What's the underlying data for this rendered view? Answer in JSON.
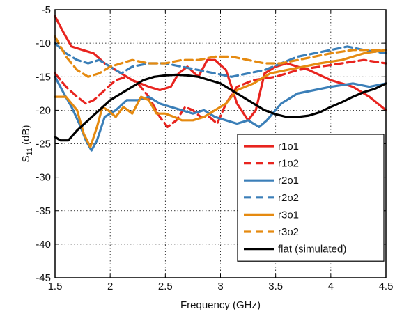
{
  "chart_data": {
    "type": "line",
    "title": "",
    "xlabel": "Frequency (GHz)",
    "ylabel_main": "S",
    "ylabel_sub": "11",
    "ylabel_unit": " (dB)",
    "xlim": [
      1.5,
      4.5
    ],
    "ylim": [
      -45,
      -5
    ],
    "xticks": [
      1.5,
      2,
      2.5,
      3,
      3.5,
      4,
      4.5
    ],
    "xtick_labels": [
      "1.5",
      "2",
      "2.5",
      "3",
      "3.5",
      "4",
      "4.5"
    ],
    "yticks": [
      -45,
      -40,
      -35,
      -30,
      -25,
      -20,
      -15,
      -10,
      -5
    ],
    "ytick_labels": [
      "-45",
      "-40",
      "-35",
      "-30",
      "-25",
      "-20",
      "-15",
      "-10",
      "-5"
    ],
    "grid": true,
    "legend_position": "lower-right",
    "series": [
      {
        "name": "r1o1",
        "color": "#e8241f",
        "dash": "solid",
        "points": [
          [
            1.5,
            -6
          ],
          [
            1.58,
            -8.5
          ],
          [
            1.65,
            -10.5
          ],
          [
            1.75,
            -11
          ],
          [
            1.85,
            -11.5
          ],
          [
            1.95,
            -13
          ],
          [
            2.05,
            -14
          ],
          [
            2.2,
            -15.5
          ],
          [
            2.35,
            -16.5
          ],
          [
            2.45,
            -17
          ],
          [
            2.55,
            -16.5
          ],
          [
            2.62,
            -14.5
          ],
          [
            2.7,
            -13.5
          ],
          [
            2.8,
            -15
          ],
          [
            2.88,
            -12.5
          ],
          [
            2.95,
            -12.5
          ],
          [
            3.05,
            -14
          ],
          [
            3.15,
            -19
          ],
          [
            3.25,
            -21.5
          ],
          [
            3.32,
            -20
          ],
          [
            3.4,
            -14.5
          ],
          [
            3.5,
            -13.5
          ],
          [
            3.6,
            -13
          ],
          [
            3.8,
            -14
          ],
          [
            4.0,
            -15.5
          ],
          [
            4.2,
            -16.5
          ],
          [
            4.35,
            -18
          ],
          [
            4.5,
            -20
          ]
        ]
      },
      {
        "name": "r1o2",
        "color": "#e8241f",
        "dash": "dashed",
        "points": [
          [
            1.5,
            -14.5
          ],
          [
            1.6,
            -16.5
          ],
          [
            1.7,
            -18
          ],
          [
            1.78,
            -19
          ],
          [
            1.85,
            -18.5
          ],
          [
            1.95,
            -17
          ],
          [
            2.05,
            -15.5
          ],
          [
            2.15,
            -15
          ],
          [
            2.25,
            -16
          ],
          [
            2.35,
            -18
          ],
          [
            2.45,
            -21
          ],
          [
            2.52,
            -22.5
          ],
          [
            2.6,
            -21.5
          ],
          [
            2.68,
            -19.5
          ],
          [
            2.75,
            -20
          ],
          [
            2.82,
            -21
          ],
          [
            2.9,
            -21
          ],
          [
            2.97,
            -22
          ],
          [
            3.05,
            -19
          ],
          [
            3.15,
            -16.5
          ],
          [
            3.3,
            -15.5
          ],
          [
            3.5,
            -15
          ],
          [
            3.7,
            -14
          ],
          [
            3.9,
            -13.5
          ],
          [
            4.1,
            -13
          ],
          [
            4.3,
            -12.5
          ],
          [
            4.5,
            -13
          ]
        ]
      },
      {
        "name": "r2o1",
        "color": "#3b7fb8",
        "dash": "solid",
        "points": [
          [
            1.5,
            -15
          ],
          [
            1.58,
            -17.5
          ],
          [
            1.65,
            -19.5
          ],
          [
            1.72,
            -22
          ],
          [
            1.78,
            -24.5
          ],
          [
            1.83,
            -26
          ],
          [
            1.88,
            -24.5
          ],
          [
            1.95,
            -21
          ],
          [
            2.05,
            -20
          ],
          [
            2.15,
            -18.5
          ],
          [
            2.25,
            -18.5
          ],
          [
            2.35,
            -18
          ],
          [
            2.45,
            -19
          ],
          [
            2.55,
            -19.5
          ],
          [
            2.65,
            -20
          ],
          [
            2.75,
            -20.5
          ],
          [
            2.85,
            -20
          ],
          [
            2.95,
            -21
          ],
          [
            3.05,
            -21.5
          ],
          [
            3.15,
            -22
          ],
          [
            3.25,
            -21.5
          ],
          [
            3.35,
            -22.5
          ],
          [
            3.42,
            -21.5
          ],
          [
            3.55,
            -19
          ],
          [
            3.7,
            -17.5
          ],
          [
            3.85,
            -17
          ],
          [
            4.0,
            -16.5
          ],
          [
            4.2,
            -16
          ],
          [
            4.35,
            -16.5
          ],
          [
            4.5,
            -16
          ]
        ]
      },
      {
        "name": "r2o2",
        "color": "#3b7fb8",
        "dash": "dashed",
        "points": [
          [
            1.5,
            -10
          ],
          [
            1.6,
            -11.5
          ],
          [
            1.7,
            -12.5
          ],
          [
            1.8,
            -13
          ],
          [
            1.9,
            -12.5
          ],
          [
            2.0,
            -13.5
          ],
          [
            2.1,
            -14.5
          ],
          [
            2.2,
            -13.5
          ],
          [
            2.35,
            -13
          ],
          [
            2.5,
            -13
          ],
          [
            2.65,
            -13.5
          ],
          [
            2.8,
            -14
          ],
          [
            2.95,
            -14.5
          ],
          [
            3.1,
            -15
          ],
          [
            3.25,
            -14.5
          ],
          [
            3.4,
            -14
          ],
          [
            3.55,
            -13
          ],
          [
            3.7,
            -12
          ],
          [
            3.85,
            -11.5
          ],
          [
            4.0,
            -11
          ],
          [
            4.15,
            -10.5
          ],
          [
            4.3,
            -11
          ],
          [
            4.5,
            -11.5
          ]
        ]
      },
      {
        "name": "r3o1",
        "color": "#e58a10",
        "dash": "solid",
        "points": [
          [
            1.5,
            -18
          ],
          [
            1.6,
            -18
          ],
          [
            1.7,
            -20
          ],
          [
            1.76,
            -23.5
          ],
          [
            1.82,
            -25.5
          ],
          [
            1.88,
            -22.5
          ],
          [
            1.93,
            -19.5
          ],
          [
            1.98,
            -20
          ],
          [
            2.05,
            -21
          ],
          [
            2.12,
            -19.5
          ],
          [
            2.2,
            -20.5
          ],
          [
            2.28,
            -18
          ],
          [
            2.35,
            -18.5
          ],
          [
            2.42,
            -20.5
          ],
          [
            2.5,
            -20.5
          ],
          [
            2.58,
            -21
          ],
          [
            2.65,
            -21.5
          ],
          [
            2.75,
            -21.5
          ],
          [
            2.85,
            -21
          ],
          [
            2.95,
            -20
          ],
          [
            3.05,
            -19
          ],
          [
            3.15,
            -17
          ],
          [
            3.3,
            -16
          ],
          [
            3.45,
            -14.5
          ],
          [
            3.6,
            -14
          ],
          [
            3.75,
            -13.5
          ],
          [
            3.9,
            -13
          ],
          [
            4.1,
            -12.5
          ],
          [
            4.3,
            -11.5
          ],
          [
            4.5,
            -11
          ]
        ]
      },
      {
        "name": "r3o2",
        "color": "#e58a10",
        "dash": "dashed",
        "points": [
          [
            1.5,
            -9
          ],
          [
            1.6,
            -12
          ],
          [
            1.7,
            -14
          ],
          [
            1.8,
            -15
          ],
          [
            1.9,
            -14.5
          ],
          [
            2.0,
            -13.5
          ],
          [
            2.1,
            -13
          ],
          [
            2.2,
            -12.5
          ],
          [
            2.35,
            -13
          ],
          [
            2.5,
            -13
          ],
          [
            2.65,
            -12.5
          ],
          [
            2.8,
            -12.5
          ],
          [
            2.95,
            -12
          ],
          [
            3.1,
            -12
          ],
          [
            3.25,
            -12.5
          ],
          [
            3.4,
            -13
          ],
          [
            3.55,
            -13
          ],
          [
            3.7,
            -12.5
          ],
          [
            3.85,
            -12
          ],
          [
            4.0,
            -11.5
          ],
          [
            4.2,
            -11
          ],
          [
            4.35,
            -11
          ],
          [
            4.5,
            -11
          ]
        ]
      },
      {
        "name": "flat (simulated)",
        "color": "#000000",
        "dash": "solid",
        "points": [
          [
            1.5,
            -24
          ],
          [
            1.55,
            -24.5
          ],
          [
            1.62,
            -24.5
          ],
          [
            1.7,
            -23
          ],
          [
            1.8,
            -21.5
          ],
          [
            1.9,
            -20
          ],
          [
            2.0,
            -18.5
          ],
          [
            2.1,
            -17.5
          ],
          [
            2.2,
            -16.5
          ],
          [
            2.3,
            -15.5
          ],
          [
            2.4,
            -15
          ],
          [
            2.5,
            -14.8
          ],
          [
            2.6,
            -14.7
          ],
          [
            2.7,
            -14.8
          ],
          [
            2.8,
            -15
          ],
          [
            2.9,
            -15.5
          ],
          [
            3.0,
            -16
          ],
          [
            3.1,
            -17
          ],
          [
            3.2,
            -18
          ],
          [
            3.3,
            -19
          ],
          [
            3.4,
            -20
          ],
          [
            3.5,
            -20.6
          ],
          [
            3.6,
            -21
          ],
          [
            3.7,
            -21
          ],
          [
            3.8,
            -20.8
          ],
          [
            3.9,
            -20.3
          ],
          [
            4.0,
            -19.5
          ],
          [
            4.1,
            -18.8
          ],
          [
            4.2,
            -18
          ],
          [
            4.3,
            -17.3
          ],
          [
            4.4,
            -16.8
          ],
          [
            4.5,
            -16
          ]
        ]
      }
    ]
  }
}
